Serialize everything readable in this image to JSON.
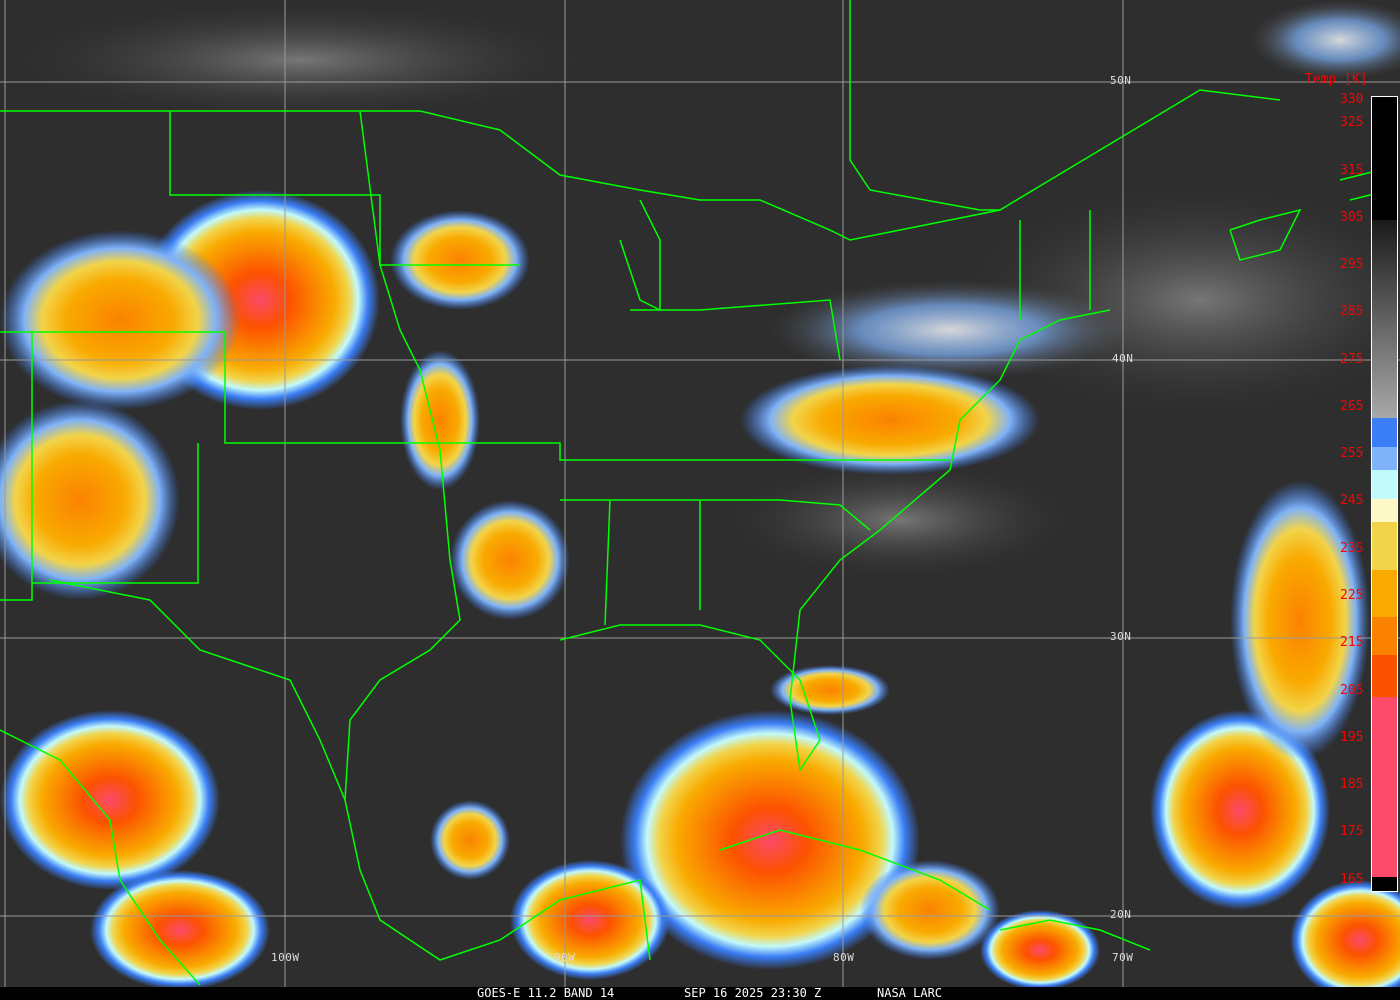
{
  "caption": {
    "product": "GOES-E 11.2 BAND 14",
    "datetime": "SEP 16 2025 23:30 Z",
    "source": "NASA LARC"
  },
  "grid": {
    "latitudes": [
      "50N",
      "40N",
      "30N",
      "20N"
    ],
    "longitudes": [
      "100W",
      "90W",
      "80W",
      "70W"
    ]
  },
  "colorbar": {
    "title": "Temp [K]",
    "ticks": [
      "330",
      "325",
      "315",
      "305",
      "295",
      "285",
      "275",
      "265",
      "255",
      "245",
      "235",
      "225",
      "215",
      "205",
      "195",
      "185",
      "175",
      "165"
    ],
    "range_K": [
      165,
      330
    ],
    "segments": [
      {
        "from": 330,
        "to": 305,
        "color": "#000000"
      },
      {
        "from": 305,
        "to": 263,
        "color_gradient": [
          "#1a1a1a",
          "#a8a8a8"
        ]
      },
      {
        "from": 263,
        "to": 257,
        "color": "#3a7df5"
      },
      {
        "from": 257,
        "to": 252,
        "color": "#7fb2f8"
      },
      {
        "from": 252,
        "to": 246,
        "color": "#c2f9fb"
      },
      {
        "from": 246,
        "to": 241,
        "color": "#fdf8c8"
      },
      {
        "from": 241,
        "to": 231,
        "color": "#f2d44a"
      },
      {
        "from": 231,
        "to": 221,
        "color": "#f9aa00"
      },
      {
        "from": 221,
        "to": 213,
        "color": "#fa8200"
      },
      {
        "from": 213,
        "to": 204,
        "color": "#fc5200"
      },
      {
        "from": 204,
        "to": 166,
        "color": "#fb4a6a"
      },
      {
        "from": 166,
        "to": 163,
        "color": "#000000"
      }
    ]
  },
  "colors": {
    "boundaries": "#00ff00",
    "gridlines": "#9a9a9a",
    "labels": "#ff0000"
  }
}
